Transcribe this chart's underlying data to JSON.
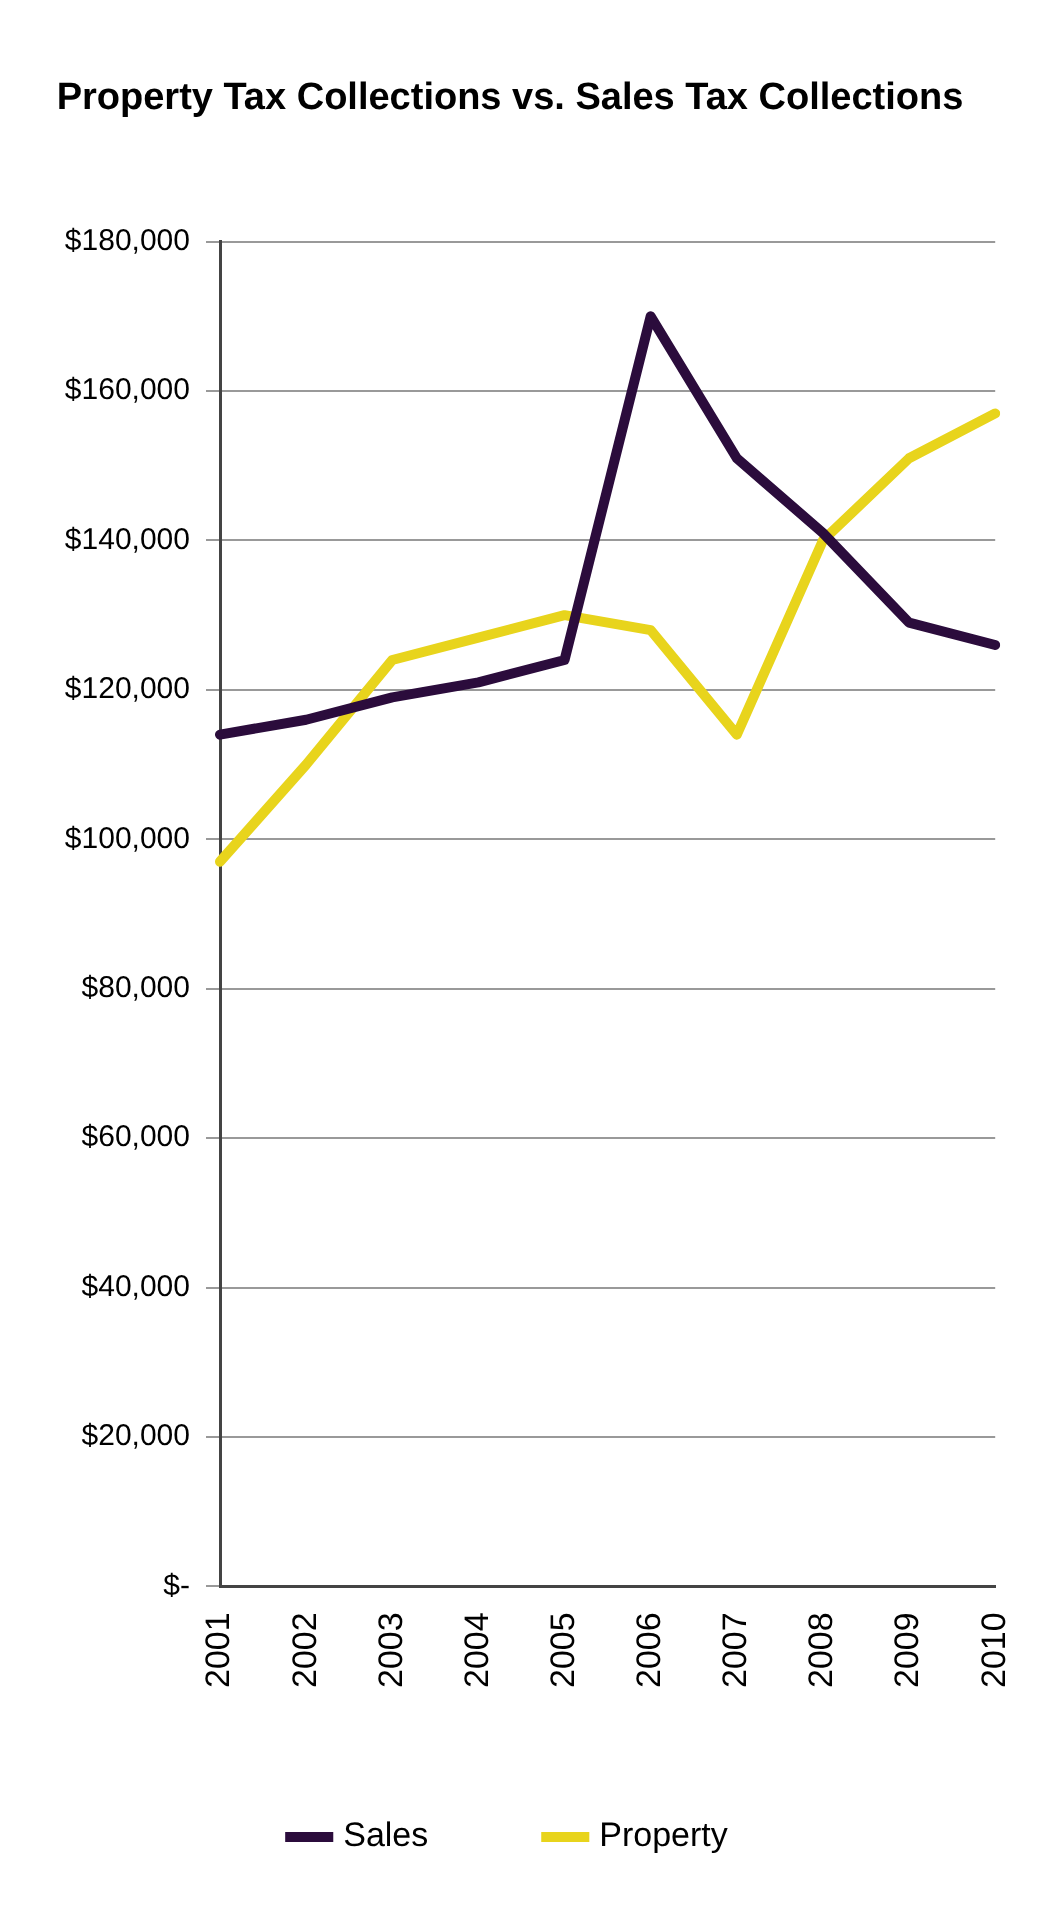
{
  "chart_data": {
    "type": "line",
    "title": "Property Tax Collections vs. Sales Tax Collections",
    "categories": [
      "2001",
      "2002",
      "2003",
      "2004",
      "2005",
      "2006",
      "2007",
      "2008",
      "2009",
      "2010"
    ],
    "series": [
      {
        "name": "Sales",
        "color": "#2b0c3c",
        "values": [
          114000,
          116000,
          119000,
          121000,
          124000,
          170000,
          151000,
          141000,
          129000,
          126000
        ]
      },
      {
        "name": "Property",
        "color": "#e8d41c",
        "values": [
          97000,
          110000,
          124000,
          127000,
          130000,
          128000,
          114000,
          140000,
          151000,
          157000
        ]
      }
    ],
    "ylim": [
      0,
      180000
    ],
    "yticks": [
      {
        "value": 0,
        "label": "$-"
      },
      {
        "value": 20000,
        "label": "$20,000"
      },
      {
        "value": 40000,
        "label": "$40,000"
      },
      {
        "value": 60000,
        "label": "$60,000"
      },
      {
        "value": 80000,
        "label": "$80,000"
      },
      {
        "value": 100000,
        "label": "$100,000"
      },
      {
        "value": 120000,
        "label": "$120,000"
      },
      {
        "value": 140000,
        "label": "$140,000"
      },
      {
        "value": 160000,
        "label": "$160,000"
      },
      {
        "value": 180000,
        "label": "$180,000"
      }
    ],
    "grid": "y",
    "legend": "bottom",
    "marker": "none",
    "line_style": "solid"
  }
}
